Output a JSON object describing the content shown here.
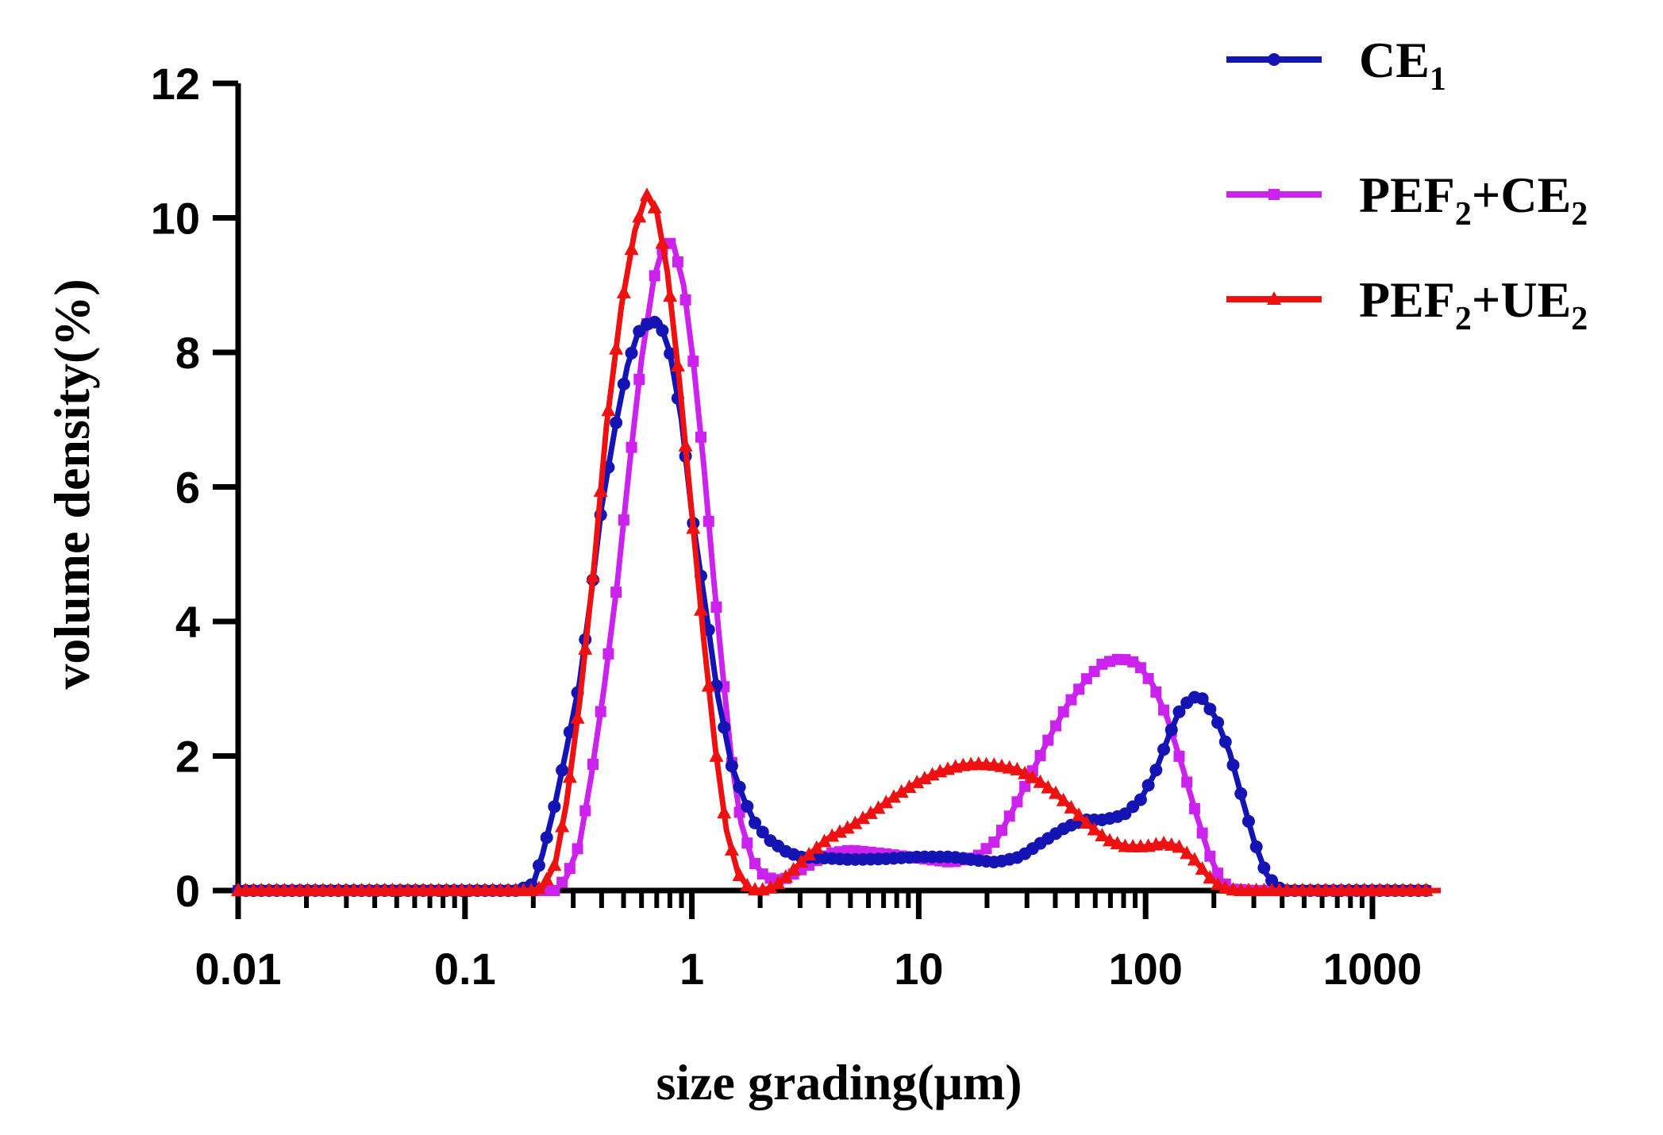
{
  "chart_data": {
    "type": "line",
    "title": "",
    "xlabel": "size grading(μm)",
    "ylabel": "volume density(%)",
    "xscale": "log",
    "xlim": [
      0.01,
      2000
    ],
    "ylim": [
      0,
      12
    ],
    "grid": false,
    "legend_position": "top-right",
    "x_ticks": [
      0.01,
      0.1,
      1,
      10,
      100,
      1000
    ],
    "x_tick_labels": [
      "0.01",
      "0.1",
      "1",
      "10",
      "100",
      "1000"
    ],
    "y_ticks": [
      0,
      2,
      4,
      6,
      8,
      10,
      12
    ],
    "y_tick_labels": [
      "0",
      "2",
      "4",
      "6",
      "8",
      "10",
      "12"
    ],
    "series": [
      {
        "name": "CE1",
        "legend_main": "CE",
        "legend_sub": "1",
        "color": "#1414b4",
        "marker": "circle",
        "points": [
          [
            0.01,
            0
          ],
          [
            0.02,
            0
          ],
          [
            0.05,
            0
          ],
          [
            0.1,
            0
          ],
          [
            0.17,
            0
          ],
          [
            0.2,
            0.1
          ],
          [
            0.22,
            0.55
          ],
          [
            0.25,
            1.3
          ],
          [
            0.28,
            2.1
          ],
          [
            0.32,
            3.1
          ],
          [
            0.36,
            4.4
          ],
          [
            0.4,
            5.7
          ],
          [
            0.46,
            6.9
          ],
          [
            0.52,
            7.8
          ],
          [
            0.58,
            8.3
          ],
          [
            0.65,
            8.45
          ],
          [
            0.72,
            8.45
          ],
          [
            0.8,
            8.0
          ],
          [
            0.9,
            7.0
          ],
          [
            1.0,
            5.6
          ],
          [
            1.15,
            4.2
          ],
          [
            1.3,
            2.9
          ],
          [
            1.5,
            1.85
          ],
          [
            1.7,
            1.35
          ],
          [
            1.9,
            1.0
          ],
          [
            2.2,
            0.75
          ],
          [
            2.6,
            0.58
          ],
          [
            3.0,
            0.5
          ],
          [
            4,
            0.48
          ],
          [
            5,
            0.46
          ],
          [
            7,
            0.47
          ],
          [
            10,
            0.5
          ],
          [
            14,
            0.5
          ],
          [
            18,
            0.45
          ],
          [
            22,
            0.42
          ],
          [
            28,
            0.5
          ],
          [
            35,
            0.72
          ],
          [
            45,
            0.95
          ],
          [
            55,
            1.05
          ],
          [
            65,
            1.05
          ],
          [
            80,
            1.12
          ],
          [
            95,
            1.35
          ],
          [
            110,
            1.75
          ],
          [
            125,
            2.25
          ],
          [
            140,
            2.65
          ],
          [
            160,
            2.88
          ],
          [
            180,
            2.85
          ],
          [
            205,
            2.55
          ],
          [
            235,
            2.05
          ],
          [
            265,
            1.4
          ],
          [
            300,
            0.75
          ],
          [
            340,
            0.25
          ],
          [
            380,
            0.05
          ],
          [
            420,
            0
          ],
          [
            600,
            0
          ],
          [
            1000,
            0
          ],
          [
            2000,
            0
          ]
        ]
      },
      {
        "name": "PEF2+CE2",
        "legend_main": "PEF",
        "legend_sub": "2",
        "legend_main2": "+CE",
        "legend_sub2": "2",
        "color": "#cc22ee",
        "marker": "square",
        "points": [
          [
            0.01,
            0
          ],
          [
            0.05,
            0
          ],
          [
            0.1,
            0
          ],
          [
            0.2,
            0
          ],
          [
            0.25,
            0
          ],
          [
            0.28,
            0.2
          ],
          [
            0.32,
            0.7
          ],
          [
            0.36,
            1.7
          ],
          [
            0.41,
            3.0
          ],
          [
            0.47,
            4.6
          ],
          [
            0.53,
            6.3
          ],
          [
            0.6,
            7.9
          ],
          [
            0.68,
            9.1
          ],
          [
            0.76,
            9.65
          ],
          [
            0.83,
            9.6
          ],
          [
            0.92,
            9.0
          ],
          [
            1.02,
            7.8
          ],
          [
            1.13,
            6.3
          ],
          [
            1.25,
            4.6
          ],
          [
            1.38,
            3.1
          ],
          [
            1.5,
            1.9
          ],
          [
            1.65,
            1.0
          ],
          [
            1.85,
            0.45
          ],
          [
            2.1,
            0.2
          ],
          [
            2.5,
            0.15
          ],
          [
            3,
            0.3
          ],
          [
            4,
            0.55
          ],
          [
            5,
            0.6
          ],
          [
            7,
            0.55
          ],
          [
            10,
            0.48
          ],
          [
            14,
            0.42
          ],
          [
            18,
            0.5
          ],
          [
            22,
            0.75
          ],
          [
            27,
            1.3
          ],
          [
            32,
            1.8
          ],
          [
            38,
            2.3
          ],
          [
            45,
            2.75
          ],
          [
            55,
            3.15
          ],
          [
            65,
            3.38
          ],
          [
            78,
            3.45
          ],
          [
            92,
            3.38
          ],
          [
            108,
            3.05
          ],
          [
            125,
            2.55
          ],
          [
            145,
            1.85
          ],
          [
            165,
            1.2
          ],
          [
            190,
            0.55
          ],
          [
            215,
            0.15
          ],
          [
            240,
            0.02
          ],
          [
            300,
            0
          ],
          [
            600,
            0
          ],
          [
            1000,
            0
          ],
          [
            2000,
            0
          ]
        ]
      },
      {
        "name": "PEF2+UE2",
        "legend_main": "PEF",
        "legend_sub": "2",
        "legend_main2": "+UE",
        "legend_sub2": "2",
        "color": "#ee1111",
        "marker": "triangle",
        "points": [
          [
            0.01,
            0
          ],
          [
            0.05,
            0
          ],
          [
            0.1,
            0
          ],
          [
            0.2,
            0
          ],
          [
            0.22,
            0.05
          ],
          [
            0.25,
            0.4
          ],
          [
            0.28,
            1.3
          ],
          [
            0.32,
            2.8
          ],
          [
            0.37,
            4.8
          ],
          [
            0.42,
            6.9
          ],
          [
            0.49,
            8.7
          ],
          [
            0.56,
            9.8
          ],
          [
            0.63,
            10.35
          ],
          [
            0.7,
            10.1
          ],
          [
            0.78,
            9.2
          ],
          [
            0.88,
            7.6
          ],
          [
            1.0,
            5.6
          ],
          [
            1.13,
            3.7
          ],
          [
            1.27,
            2.1
          ],
          [
            1.42,
            0.9
          ],
          [
            1.6,
            0.25
          ],
          [
            1.8,
            0.02
          ],
          [
            2.0,
            0
          ],
          [
            2.3,
            0.05
          ],
          [
            2.7,
            0.25
          ],
          [
            3.2,
            0.5
          ],
          [
            4,
            0.78
          ],
          [
            5,
            0.95
          ],
          [
            6.5,
            1.2
          ],
          [
            8,
            1.42
          ],
          [
            10,
            1.62
          ],
          [
            12,
            1.75
          ],
          [
            15,
            1.85
          ],
          [
            18,
            1.88
          ],
          [
            22,
            1.86
          ],
          [
            27,
            1.8
          ],
          [
            33,
            1.65
          ],
          [
            40,
            1.45
          ],
          [
            48,
            1.2
          ],
          [
            57,
            0.95
          ],
          [
            68,
            0.75
          ],
          [
            82,
            0.65
          ],
          [
            100,
            0.65
          ],
          [
            120,
            0.7
          ],
          [
            140,
            0.65
          ],
          [
            165,
            0.45
          ],
          [
            190,
            0.2
          ],
          [
            215,
            0.05
          ],
          [
            250,
            0
          ],
          [
            500,
            0
          ],
          [
            1000,
            0
          ],
          [
            2000,
            0
          ]
        ]
      }
    ]
  }
}
